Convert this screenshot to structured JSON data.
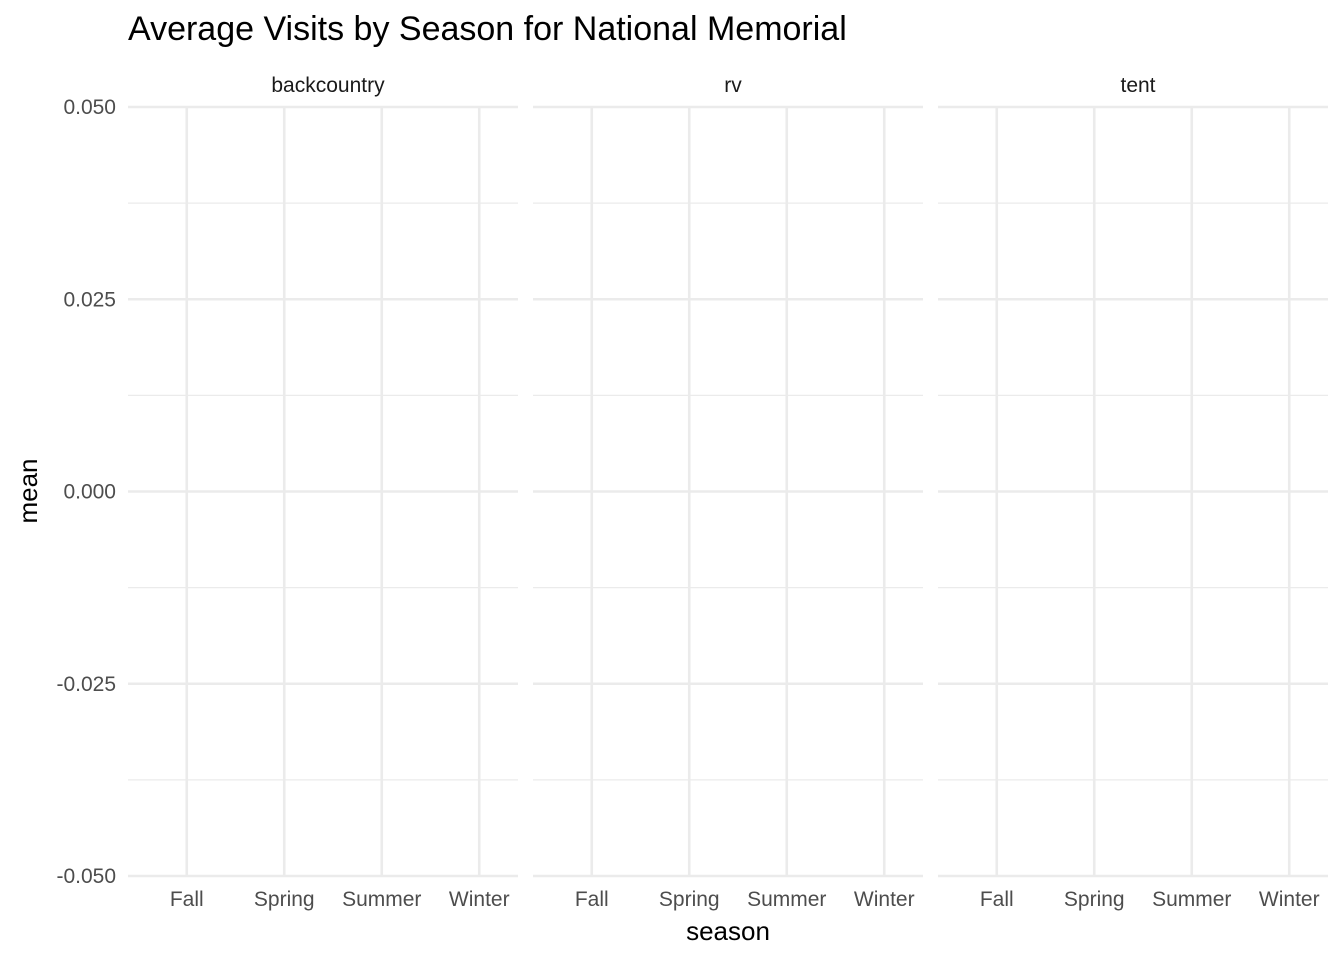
{
  "chart_data": {
    "type": "bar",
    "title": "Average Visits by Season for National Memorial",
    "xlabel": "season",
    "ylabel": "mean",
    "categories": [
      "Fall",
      "Spring",
      "Summer",
      "Winter"
    ],
    "facets": [
      "backcountry",
      "rv",
      "tent"
    ],
    "series": [],
    "ylim": [
      -0.05,
      0.05
    ],
    "yticks": [
      "0.050",
      "0.025",
      "0.000",
      "-0.025",
      "-0.050"
    ],
    "ytick_values": [
      0.05,
      0.025,
      0.0,
      -0.025,
      -0.05
    ],
    "grid": true,
    "legend": "none"
  },
  "colors": {
    "background": "#ffffff",
    "grid": "#ebebeb",
    "tick_text": "#4d4d4d",
    "text": "#000000"
  }
}
